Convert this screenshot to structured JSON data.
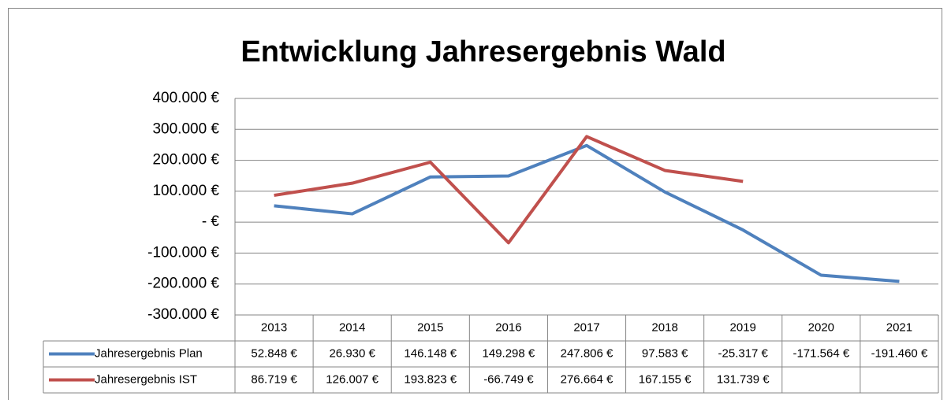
{
  "chart_data": {
    "type": "line",
    "title": "Entwicklung Jahresergebnis Wald",
    "categories": [
      "2013",
      "2014",
      "2015",
      "2016",
      "2017",
      "2018",
      "2019",
      "2020",
      "2021"
    ],
    "series": [
      {
        "name": "Jahresergebnis Plan",
        "color": "#4f81bd",
        "values": [
          52848,
          26930,
          146148,
          149298,
          247806,
          97583,
          -25317,
          -171564,
          -191460
        ],
        "value_labels": [
          "52.848 €",
          "26.930 €",
          "146.148 €",
          "149.298 €",
          "247.806 €",
          "97.583 €",
          "-25.317 €",
          "-171.564 €",
          "-191.460 €"
        ]
      },
      {
        "name": "Jahresergebnis IST",
        "color": "#c0504d",
        "values": [
          86719,
          126007,
          193823,
          -66749,
          276664,
          167155,
          131739,
          null,
          null
        ],
        "value_labels": [
          "86.719 €",
          "126.007 €",
          "193.823 €",
          "-66.749 €",
          "276.664 €",
          "167.155 €",
          "131.739 €",
          null,
          null
        ]
      }
    ],
    "ylim": [
      -300000,
      400000
    ],
    "yticks": [
      {
        "value": -300000,
        "label": "-300.000 €"
      },
      {
        "value": -200000,
        "label": "-200.000 €"
      },
      {
        "value": -100000,
        "label": "-100.000 €"
      },
      {
        "value": 0,
        "label": "-   €"
      },
      {
        "value": 100000,
        "label": "100.000 €"
      },
      {
        "value": 200000,
        "label": "200.000 €"
      },
      {
        "value": 300000,
        "label": "300.000 €"
      },
      {
        "value": 400000,
        "label": "400.000 €"
      }
    ],
    "grid": true
  }
}
